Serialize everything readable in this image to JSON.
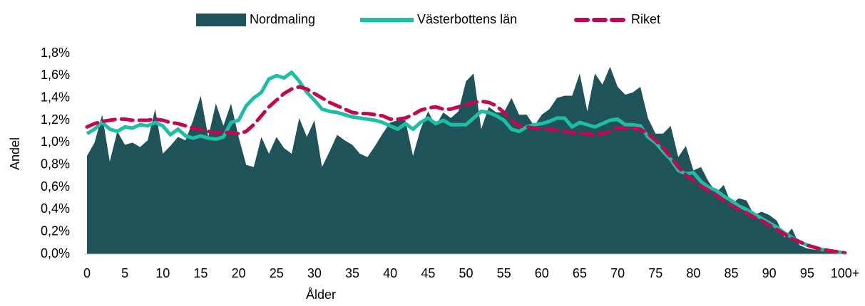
{
  "chart_data": {
    "type": "line",
    "x_label": "Ålder",
    "y_label": "Andel",
    "categories": [
      "0",
      null,
      null,
      null,
      null,
      "5",
      null,
      null,
      null,
      null,
      "10",
      null,
      null,
      null,
      null,
      "15",
      null,
      null,
      null,
      null,
      "20",
      null,
      null,
      null,
      null,
      "25",
      null,
      null,
      null,
      null,
      "30",
      null,
      null,
      null,
      null,
      "35",
      null,
      null,
      null,
      null,
      "40",
      null,
      null,
      null,
      null,
      "45",
      null,
      null,
      null,
      null,
      "50",
      null,
      null,
      null,
      null,
      "55",
      null,
      null,
      null,
      null,
      "60",
      null,
      null,
      null,
      null,
      "65",
      null,
      null,
      null,
      null,
      "70",
      null,
      null,
      null,
      null,
      "75",
      null,
      null,
      null,
      null,
      "80",
      null,
      null,
      null,
      null,
      "85",
      null,
      null,
      null,
      null,
      "90",
      null,
      null,
      null,
      null,
      "95",
      null,
      null,
      null,
      null,
      "100+"
    ],
    "ylim": [
      0,
      1.8
    ],
    "yticks": [
      {
        "value": 0,
        "label": "0,0%"
      },
      {
        "value": 0.2,
        "label": "0,2%"
      },
      {
        "value": 0.4,
        "label": "0,4%"
      },
      {
        "value": 0.6,
        "label": "0,6%"
      },
      {
        "value": 0.8,
        "label": "0,8%"
      },
      {
        "value": 1.0,
        "label": "1,0%"
      },
      {
        "value": 1.2,
        "label": "1,2%"
      },
      {
        "value": 1.4,
        "label": "1,4%"
      },
      {
        "value": 1.6,
        "label": "1,6%"
      },
      {
        "value": 1.8,
        "label": "1,8%"
      }
    ],
    "legend": "top",
    "series": [
      {
        "name": "Nordmaling",
        "color": "#1f535a",
        "style": "area",
        "values": [
          0.88,
          1.0,
          1.25,
          0.83,
          1.1,
          0.98,
          1.0,
          0.96,
          1.02,
          1.3,
          0.9,
          0.97,
          1.05,
          1.02,
          1.2,
          1.42,
          1.05,
          1.35,
          1.15,
          1.35,
          1.05,
          0.8,
          0.78,
          1.05,
          0.9,
          1.05,
          0.95,
          0.9,
          1.22,
          1.05,
          1.2,
          0.78,
          0.92,
          1.07,
          1.02,
          0.98,
          0.9,
          0.87,
          0.97,
          1.08,
          1.18,
          1.2,
          1.2,
          0.88,
          1.12,
          1.28,
          1.15,
          1.27,
          1.22,
          1.28,
          1.55,
          1.62,
          1.12,
          1.32,
          1.27,
          1.27,
          1.4,
          1.25,
          1.25,
          1.15,
          1.25,
          1.3,
          1.4,
          1.42,
          1.42,
          1.62,
          1.28,
          1.62,
          1.52,
          1.68,
          1.5,
          1.43,
          1.45,
          1.5,
          1.22,
          1.08,
          1.08,
          1.15,
          0.87,
          0.97,
          0.75,
          0.78,
          0.65,
          0.55,
          0.62,
          0.45,
          0.5,
          0.48,
          0.35,
          0.38,
          0.35,
          0.3,
          0.15,
          0.23,
          0.08,
          0.05,
          0.04,
          0.03,
          0.02,
          0.02,
          0.01
        ]
      },
      {
        "name": "Västerbottens län",
        "color": "#1cbfa6",
        "style": "solid",
        "values": [
          1.08,
          1.12,
          1.18,
          1.12,
          1.1,
          1.14,
          1.13,
          1.16,
          1.15,
          1.18,
          1.15,
          1.07,
          1.12,
          1.06,
          1.04,
          1.06,
          1.04,
          1.03,
          1.05,
          1.18,
          1.2,
          1.33,
          1.4,
          1.45,
          1.57,
          1.6,
          1.58,
          1.63,
          1.55,
          1.45,
          1.38,
          1.3,
          1.28,
          1.27,
          1.25,
          1.23,
          1.22,
          1.21,
          1.2,
          1.18,
          1.15,
          1.12,
          1.17,
          1.12,
          1.18,
          1.22,
          1.17,
          1.2,
          1.16,
          1.16,
          1.16,
          1.22,
          1.28,
          1.27,
          1.24,
          1.2,
          1.12,
          1.1,
          1.14,
          1.16,
          1.17,
          1.19,
          1.22,
          1.22,
          1.14,
          1.18,
          1.16,
          1.14,
          1.17,
          1.2,
          1.21,
          1.16,
          1.16,
          1.15,
          1.05,
          1.0,
          0.92,
          0.85,
          0.75,
          0.72,
          0.73,
          0.65,
          0.6,
          0.57,
          0.52,
          0.48,
          0.43,
          0.4,
          0.36,
          0.32,
          0.28,
          0.24,
          0.19,
          0.15,
          0.11,
          0.08,
          0.06,
          0.04,
          0.03,
          0.02,
          0.01
        ]
      },
      {
        "name": "Riket",
        "color": "#c2094f",
        "style": "dashed",
        "values": [
          1.14,
          1.17,
          1.19,
          1.2,
          1.21,
          1.21,
          1.2,
          1.2,
          1.2,
          1.21,
          1.2,
          1.18,
          1.17,
          1.15,
          1.13,
          1.12,
          1.1,
          1.09,
          1.09,
          1.09,
          1.08,
          1.1,
          1.16,
          1.24,
          1.32,
          1.38,
          1.44,
          1.48,
          1.5,
          1.48,
          1.44,
          1.4,
          1.36,
          1.33,
          1.3,
          1.27,
          1.26,
          1.26,
          1.25,
          1.24,
          1.21,
          1.21,
          1.22,
          1.25,
          1.29,
          1.31,
          1.32,
          1.3,
          1.3,
          1.32,
          1.34,
          1.36,
          1.37,
          1.36,
          1.33,
          1.27,
          1.2,
          1.15,
          1.14,
          1.13,
          1.13,
          1.12,
          1.11,
          1.1,
          1.09,
          1.08,
          1.08,
          1.07,
          1.08,
          1.1,
          1.13,
          1.13,
          1.13,
          1.12,
          1.08,
          1.02,
          0.95,
          0.87,
          0.78,
          0.71,
          0.66,
          0.61,
          0.57,
          0.53,
          0.48,
          0.44,
          0.4,
          0.37,
          0.33,
          0.3,
          0.26,
          0.22,
          0.18,
          0.14,
          0.11,
          0.08,
          0.06,
          0.04,
          0.03,
          0.02,
          0.01
        ]
      }
    ]
  }
}
